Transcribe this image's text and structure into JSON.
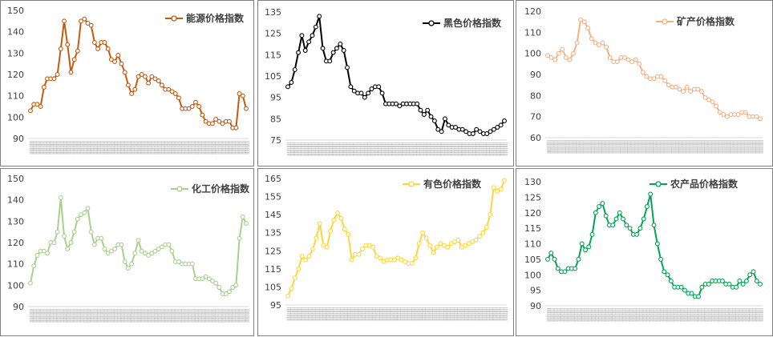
{
  "chart_data": [
    {
      "type": "line",
      "series": [
        {
          "name": "能源价格指数",
          "color": "#C55A11",
          "values": [
            103,
            106,
            106,
            105,
            114,
            118,
            118,
            118,
            120,
            132,
            145,
            134,
            121,
            127,
            131,
            145,
            146,
            144,
            143,
            135,
            132,
            135,
            135,
            132,
            127,
            126,
            129,
            125,
            121,
            115,
            111,
            113,
            119,
            120,
            119,
            116,
            119,
            118,
            117,
            115,
            113,
            113,
            112,
            111,
            109,
            104,
            104,
            104,
            105,
            107,
            105,
            101,
            98,
            97,
            97,
            99,
            98,
            97,
            98,
            98,
            95,
            95,
            111,
            110,
            104
          ]
        }
      ],
      "ylim": [
        90,
        150
      ],
      "yticks": [
        90,
        100,
        110,
        120,
        130,
        140,
        150
      ],
      "legend": "top-right"
    },
    {
      "type": "line",
      "series": [
        {
          "name": "黑色价格指数",
          "color": "#000000",
          "values": [
            100,
            102,
            108,
            116,
            124,
            117,
            121,
            124,
            128,
            133,
            118,
            112,
            112,
            116,
            118,
            120,
            117,
            109,
            100,
            98,
            97,
            97,
            95,
            97,
            99,
            100,
            100,
            97,
            92,
            92,
            92,
            92,
            91,
            92,
            92,
            92,
            92,
            92,
            89,
            87,
            89,
            86,
            84,
            80,
            79,
            85,
            82,
            81,
            81,
            80,
            80,
            79,
            78,
            78,
            80,
            79,
            78,
            78,
            79,
            80,
            81,
            82,
            84
          ]
        }
      ],
      "ylim": [
        75,
        135
      ],
      "yticks": [
        75,
        85,
        95,
        105,
        115,
        125,
        135
      ],
      "legend": "top-right"
    },
    {
      "type": "line",
      "series": [
        {
          "name": "矿产价格指数",
          "color": "#F4B183",
          "values": [
            99,
            98,
            97,
            100,
            102,
            98,
            97,
            100,
            105,
            116,
            115,
            112,
            107,
            105,
            104,
            105,
            103,
            98,
            96,
            96,
            98,
            98,
            97,
            96,
            97,
            95,
            91,
            89,
            88,
            88,
            89,
            89,
            87,
            85,
            84,
            84,
            83,
            82,
            84,
            82,
            83,
            83,
            82,
            79,
            78,
            77,
            75,
            72,
            71,
            70,
            71,
            71,
            71,
            72,
            72,
            70,
            70,
            70,
            69
          ]
        }
      ],
      "ylim": [
        60,
        120
      ],
      "yticks": [
        60,
        70,
        80,
        90,
        100,
        110,
        120
      ],
      "legend": "top-right"
    },
    {
      "type": "line",
      "series": [
        {
          "name": "化工价格指数",
          "color": "#A9D18E",
          "values": [
            101,
            109,
            114,
            116,
            116,
            115,
            120,
            120,
            125,
            141,
            123,
            117,
            120,
            125,
            131,
            133,
            134,
            136,
            125,
            119,
            122,
            122,
            117,
            115,
            116,
            117,
            119,
            119,
            111,
            108,
            110,
            115,
            121,
            116,
            115,
            114,
            115,
            116,
            117,
            118,
            119,
            119,
            116,
            111,
            111,
            110,
            110,
            110,
            110,
            103,
            103,
            103,
            104,
            103,
            102,
            101,
            99,
            96,
            96,
            97,
            99,
            100,
            122,
            132,
            129
          ]
        }
      ],
      "ylim": [
        90,
        150
      ],
      "yticks": [
        90,
        100,
        110,
        120,
        130,
        140,
        150
      ],
      "legend": "top-right"
    },
    {
      "type": "line",
      "series": [
        {
          "name": "有色价格指数",
          "color": "#FFD53B",
          "values": [
            100,
            104,
            110,
            115,
            122,
            120,
            122,
            126,
            132,
            140,
            128,
            127,
            136,
            142,
            146,
            143,
            137,
            134,
            120,
            123,
            123,
            126,
            128,
            128,
            127,
            122,
            121,
            119,
            120,
            120,
            120,
            121,
            120,
            119,
            118,
            118,
            121,
            129,
            135,
            132,
            128,
            124,
            127,
            129,
            128,
            127,
            129,
            130,
            131,
            127,
            128,
            129,
            130,
            131,
            133,
            135,
            138,
            145,
            160,
            158,
            159,
            164
          ]
        }
      ],
      "ylim": [
        95,
        165
      ],
      "yticks": [
        95,
        105,
        115,
        125,
        135,
        145,
        155,
        165
      ],
      "legend": "top-right"
    },
    {
      "type": "line",
      "series": [
        {
          "name": "农产品价格指数",
          "color": "#00A651",
          "values": [
            105,
            107,
            105,
            102,
            101,
            101,
            102,
            102,
            102,
            105,
            110,
            108,
            109,
            113,
            120,
            122,
            123,
            119,
            116,
            116,
            118,
            120,
            118,
            116,
            115,
            113,
            113,
            115,
            118,
            122,
            126,
            116,
            110,
            105,
            101,
            100,
            98,
            96,
            96,
            96,
            95,
            94,
            94,
            93,
            93,
            96,
            97,
            97,
            98,
            98,
            98,
            98,
            97,
            97,
            96,
            96,
            98,
            97,
            98,
            100,
            101,
            98,
            97
          ]
        }
      ],
      "ylim": [
        90,
        130
      ],
      "yticks": [
        90,
        95,
        100,
        105,
        110,
        115,
        120,
        125,
        130
      ],
      "legend": "top-right"
    }
  ]
}
